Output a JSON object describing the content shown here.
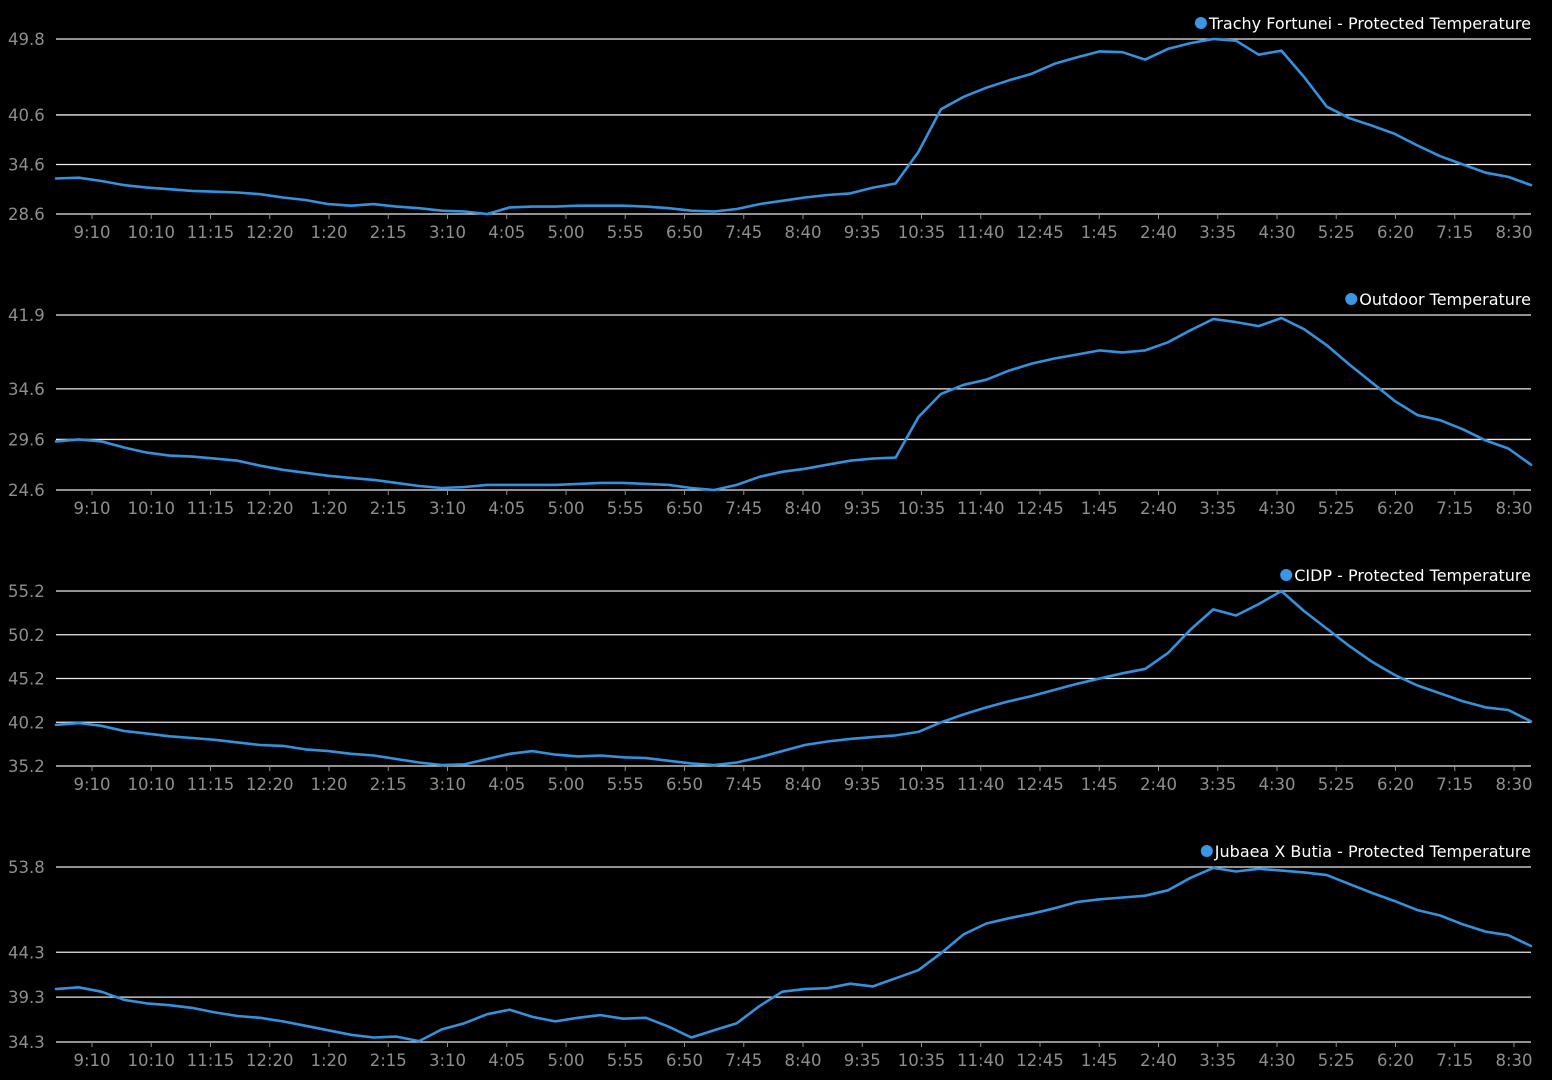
{
  "colors": {
    "background": "#000000",
    "series_line": "#3391de",
    "legend_dot": "#3a97e6",
    "gridline": "#e9e9e9",
    "tick_label": "#8e8e8e",
    "legend_text": "#ffffff"
  },
  "chart_data": [
    {
      "type": "line",
      "title": "",
      "xlabel": "",
      "ylabel": "",
      "grid": "horizontal",
      "legend_position": "top-right",
      "legend": "Trachy Fortunei - Protected Temperature",
      "x_ticks": [
        "9:10",
        "10:10",
        "11:15",
        "12:20",
        "1:20",
        "2:15",
        "3:10",
        "4:05",
        "5:00",
        "5:55",
        "6:50",
        "7:45",
        "8:40",
        "9:35",
        "10:35",
        "11:40",
        "12:45",
        "1:45",
        "2:40",
        "3:35",
        "4:30",
        "5:25",
        "6:20",
        "7:15",
        "8:30"
      ],
      "y_ticks": [
        28.6,
        34.6,
        40.6,
        49.8
      ],
      "ylim": [
        28.6,
        49.8
      ],
      "series": [
        {
          "name": "Trachy Fortunei - Protected Temperature",
          "values": [
            32.9,
            33.0,
            32.6,
            32.1,
            31.8,
            31.6,
            31.4,
            31.3,
            31.2,
            31.0,
            30.6,
            30.3,
            29.8,
            29.6,
            29.8,
            29.5,
            29.3,
            29.0,
            28.9,
            28.6,
            29.4,
            29.5,
            29.5,
            29.6,
            29.6,
            29.6,
            29.5,
            29.3,
            29.0,
            28.9,
            29.2,
            29.8,
            30.2,
            30.6,
            30.9,
            31.1,
            31.8,
            32.3,
            36.1,
            41.3,
            42.8,
            43.9,
            44.8,
            45.6,
            46.8,
            47.6,
            48.3,
            48.2,
            47.3,
            48.6,
            49.3,
            49.8,
            49.6,
            47.9,
            48.4,
            45.2,
            41.6,
            40.2,
            39.3,
            38.3,
            36.9,
            35.6,
            34.6,
            33.6,
            33.1,
            32.1
          ]
        }
      ]
    },
    {
      "type": "line",
      "title": "",
      "xlabel": "",
      "ylabel": "",
      "grid": "horizontal",
      "legend_position": "top-right",
      "legend": "Outdoor Temperature",
      "x_ticks": [
        "9:10",
        "10:10",
        "11:15",
        "12:20",
        "1:20",
        "2:15",
        "3:10",
        "4:05",
        "5:00",
        "5:55",
        "6:50",
        "7:45",
        "8:40",
        "9:35",
        "10:35",
        "11:40",
        "12:45",
        "1:45",
        "2:40",
        "3:35",
        "4:30",
        "5:25",
        "6:20",
        "7:15",
        "8:30"
      ],
      "y_ticks": [
        24.6,
        29.6,
        34.6,
        41.9
      ],
      "ylim": [
        24.6,
        41.9
      ],
      "series": [
        {
          "name": "Outdoor Temperature",
          "values": [
            29.4,
            29.6,
            29.4,
            28.8,
            28.3,
            28.0,
            27.9,
            27.7,
            27.5,
            27.0,
            26.6,
            26.3,
            26.0,
            25.8,
            25.6,
            25.3,
            25.0,
            24.8,
            24.9,
            25.1,
            25.1,
            25.1,
            25.1,
            25.2,
            25.3,
            25.3,
            25.2,
            25.1,
            24.8,
            24.6,
            25.1,
            25.9,
            26.4,
            26.7,
            27.1,
            27.5,
            27.7,
            27.8,
            31.8,
            34.1,
            35.0,
            35.5,
            36.4,
            37.1,
            37.6,
            38.0,
            38.4,
            38.2,
            38.4,
            39.2,
            40.4,
            41.5,
            41.2,
            40.8,
            41.6,
            40.5,
            38.9,
            37.0,
            35.2,
            33.4,
            32.0,
            31.5,
            30.6,
            29.5,
            28.7,
            27.1
          ]
        }
      ]
    },
    {
      "type": "line",
      "title": "",
      "xlabel": "",
      "ylabel": "",
      "grid": "horizontal",
      "legend_position": "top-right",
      "legend": "CIDP - Protected Temperature",
      "x_ticks": [
        "9:10",
        "10:10",
        "11:15",
        "12:20",
        "1:20",
        "2:15",
        "3:10",
        "4:05",
        "5:00",
        "5:55",
        "6:50",
        "7:45",
        "8:40",
        "9:35",
        "10:35",
        "11:40",
        "12:45",
        "1:45",
        "2:40",
        "3:35",
        "4:30",
        "5:25",
        "6:20",
        "7:15",
        "8:30"
      ],
      "y_ticks": [
        35.2,
        40.2,
        45.2,
        50.2,
        55.2
      ],
      "ylim": [
        35.2,
        55.2
      ],
      "series": [
        {
          "name": "CIDP - Protected Temperature",
          "values": [
            39.9,
            40.1,
            39.8,
            39.2,
            38.9,
            38.6,
            38.4,
            38.2,
            37.9,
            37.6,
            37.5,
            37.1,
            36.9,
            36.6,
            36.4,
            36.0,
            35.6,
            35.3,
            35.4,
            36.0,
            36.6,
            36.9,
            36.5,
            36.3,
            36.4,
            36.2,
            36.1,
            35.8,
            35.5,
            35.3,
            35.6,
            36.2,
            36.9,
            37.6,
            38.0,
            38.3,
            38.5,
            38.7,
            39.1,
            40.2,
            41.1,
            41.9,
            42.6,
            43.2,
            43.9,
            44.6,
            45.2,
            45.8,
            46.3,
            48.1,
            50.8,
            53.1,
            52.4,
            53.7,
            55.2,
            52.9,
            50.9,
            48.9,
            47.1,
            45.6,
            44.4,
            43.5,
            42.6,
            41.9,
            41.6,
            40.3
          ]
        }
      ]
    },
    {
      "type": "line",
      "title": "",
      "xlabel": "",
      "ylabel": "",
      "grid": "horizontal",
      "legend_position": "top-right",
      "legend": "Jubaea X Butia - Protected Temperature",
      "x_ticks": [
        "9:10",
        "10:10",
        "11:15",
        "12:20",
        "1:20",
        "2:15",
        "3:10",
        "4:05",
        "5:00",
        "5:55",
        "6:50",
        "7:45",
        "8:40",
        "9:35",
        "10:35",
        "11:40",
        "12:45",
        "1:45",
        "2:40",
        "3:35",
        "4:30",
        "5:25",
        "6:20",
        "7:15",
        "8:30"
      ],
      "y_ticks": [
        34.3,
        39.3,
        44.3,
        53.8
      ],
      "ylim": [
        34.3,
        53.8
      ],
      "series": [
        {
          "name": "Jubaea X Butia - Protected Temperature",
          "values": [
            40.2,
            40.4,
            39.9,
            39.0,
            38.6,
            38.4,
            38.1,
            37.6,
            37.2,
            37.0,
            36.6,
            36.1,
            35.6,
            35.1,
            34.8,
            34.9,
            34.4,
            35.7,
            36.4,
            37.4,
            37.9,
            37.1,
            36.6,
            37.0,
            37.3,
            36.9,
            37.0,
            36.0,
            34.8,
            35.6,
            36.4,
            38.3,
            39.9,
            40.2,
            40.3,
            40.8,
            40.5,
            41.4,
            42.3,
            44.2,
            46.3,
            47.5,
            48.1,
            48.6,
            49.2,
            49.9,
            50.2,
            50.4,
            50.6,
            51.2,
            52.6,
            53.7,
            53.3,
            53.6,
            53.4,
            53.2,
            52.9,
            51.9,
            50.9,
            50.0,
            49.0,
            48.4,
            47.4,
            46.6,
            46.2,
            45.0
          ]
        }
      ]
    }
  ]
}
